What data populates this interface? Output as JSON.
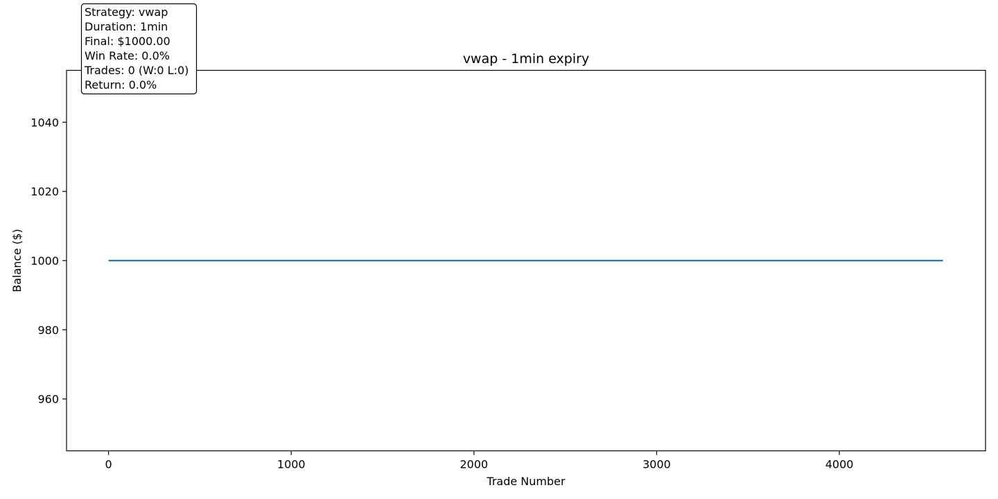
{
  "chart_data": {
    "type": "line",
    "title": "vwap - 1min expiry",
    "xlabel": "Trade Number",
    "ylabel": "Balance ($)",
    "xlim": [
      -230,
      4800
    ],
    "ylim": [
      945,
      1055
    ],
    "xticks": [
      0,
      1000,
      2000,
      3000,
      4000
    ],
    "yticks": [
      960,
      980,
      1000,
      1020,
      1040
    ],
    "grid": false,
    "series": [
      {
        "color": "#1f77b4",
        "x": [
          0,
          4567
        ],
        "y": [
          1000,
          1000
        ]
      }
    ],
    "annotation": {
      "lines": [
        "Strategy: vwap",
        "Duration: 1min",
        "Final: $1000.00",
        "Win Rate: 0.0%",
        "Trades: 0 (W:0 L:0)",
        "Return: 0.0%"
      ]
    }
  }
}
